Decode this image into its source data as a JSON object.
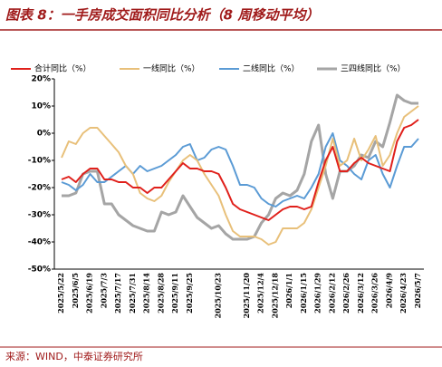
{
  "header": {
    "title": "图表 8：一手房成交面积同比分析（8 周移动平均）"
  },
  "chart_data": {
    "type": "line",
    "categories": [
      "2025/5/22",
      null,
      "2025/6/5",
      null,
      "2025/6/19",
      null,
      "2025/7/3",
      null,
      "2025/7/17",
      null,
      "2025/7/31",
      null,
      "2025/8/14",
      null,
      "2025/8/28",
      null,
      "2025/9/11",
      null,
      "2025/9/25",
      null,
      null,
      null,
      "2025/10/23",
      null,
      null,
      null,
      "2025/11/20",
      null,
      "2025/12/4",
      null,
      "2025/12/18",
      null,
      "2026/1/1",
      null,
      "2026/1/15",
      null,
      "2026/1/29",
      null,
      "2026/2/12",
      null,
      "2026/2/26",
      null,
      "2026/3/12",
      null,
      "2026/3/26",
      null,
      "2026/4/9",
      null,
      "2026/4/23",
      null,
      "2026/5/7"
    ],
    "series": [
      {
        "name": "合计同比（%）",
        "color": "#e0201b",
        "values": [
          -17,
          -16,
          -18,
          -15,
          -13,
          -13,
          -17,
          -17,
          -18,
          -18,
          -20,
          -20,
          -22,
          -20,
          -20,
          -17,
          -14,
          -11,
          -13,
          -13,
          -14,
          -14,
          -15,
          -20,
          -26,
          -28,
          -29,
          -30,
          -31,
          -32,
          -30,
          -28,
          -27,
          -27,
          -28,
          -27,
          -18,
          -10,
          -5,
          -14,
          -14,
          -11,
          -9,
          -11,
          -12,
          -13,
          -14,
          -3,
          2,
          3,
          5
        ]
      },
      {
        "name": "一线同比（%）",
        "color": "#e8c07a",
        "values": [
          -9,
          -3,
          -4,
          0,
          2,
          2,
          -1,
          -4,
          -7,
          -12,
          -15,
          -22,
          -24,
          -25,
          -23,
          -18,
          -14,
          -10,
          -8,
          -10,
          -15,
          -19,
          -23,
          -30,
          -36,
          -38,
          -38,
          -38,
          -39,
          -41,
          -40,
          -35,
          -35,
          -35,
          -33,
          -28,
          -20,
          -12,
          -2,
          -12,
          -10,
          -2,
          -10,
          -6,
          -1,
          -12,
          -8,
          0,
          6,
          8,
          10
        ]
      },
      {
        "name": "二线同比（%）",
        "color": "#5b9bd5",
        "values": [
          -18,
          -19,
          -21,
          -19,
          -15,
          -18,
          -18,
          -16,
          -14,
          -12,
          -15,
          -12,
          -14,
          -13,
          -12,
          -10,
          -8,
          -5,
          -4,
          -10,
          -9,
          -6,
          -5,
          -6,
          -12,
          -19,
          -19,
          -20,
          -24,
          -26,
          -27,
          -25,
          -24,
          -23,
          -24,
          -20,
          -15,
          -5,
          0,
          -10,
          -12,
          -15,
          -17,
          -10,
          -8,
          -15,
          -20,
          -12,
          -5,
          -5,
          -2
        ]
      },
      {
        "name": "三四线同比（%）",
        "color": "#a5a5a5",
        "values": [
          -23,
          -23,
          -22,
          -15,
          -14,
          -14,
          -26,
          -26,
          -30,
          -32,
          -34,
          -35,
          -36,
          -36,
          -29,
          -30,
          -29,
          -23,
          -27,
          -31,
          -33,
          -35,
          -34,
          -37,
          -39,
          -39,
          -39,
          -38,
          -33,
          -30,
          -24,
          -22,
          -23,
          -21,
          -15,
          -3,
          3,
          -15,
          -24,
          -14,
          -14,
          -12,
          -8,
          -9,
          -3,
          -5,
          4,
          14,
          12,
          11,
          11
        ]
      }
    ],
    "ylim": [
      -50,
      20
    ],
    "yticks": [
      {
        "value": -50,
        "label": "-50%"
      },
      {
        "value": -40,
        "label": "-40%"
      },
      {
        "value": -30,
        "label": "-30%"
      },
      {
        "value": -20,
        "label": "-20%"
      },
      {
        "value": -10,
        "label": "-10%"
      },
      {
        "value": 0,
        "label": "0%"
      },
      {
        "value": 10,
        "label": "10%"
      },
      {
        "value": 20,
        "label": "20%"
      }
    ]
  },
  "footer": {
    "source": "来源：WIND，中泰证券研究所"
  }
}
